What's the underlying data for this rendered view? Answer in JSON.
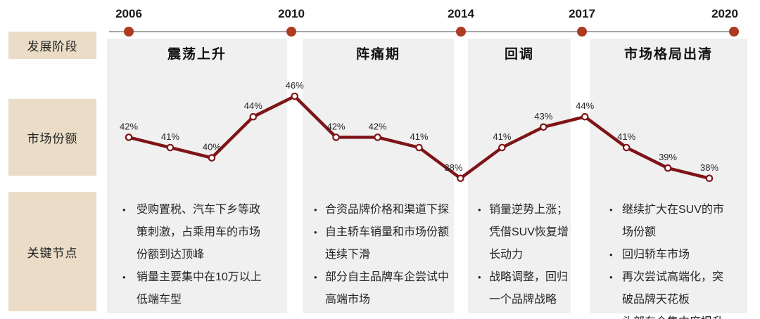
{
  "timeline": {
    "years": [
      "2006",
      "2010",
      "2014",
      "2017",
      "2020"
    ]
  },
  "row_labels": {
    "stage": "发展阶段",
    "share": "市场份额",
    "nodes": "关键节点"
  },
  "phases": [
    {
      "title": "震荡上升",
      "start_year": 2006,
      "end_year": 2010,
      "notes": [
        "受购置税、汽车下乡等政策刺激，占乘用车的市场份额到达顶峰",
        "销量主要集中在10万以上低端车型"
      ]
    },
    {
      "title": "阵痛期",
      "start_year": 2010,
      "end_year": 2014,
      "notes": [
        "合资品牌价格和渠道下探",
        "自主轿车销量和市场份额连续下滑",
        "部分自主品牌车企尝试中高端市场"
      ]
    },
    {
      "title": "回调",
      "start_year": 2014,
      "end_year": 2017,
      "notes": [
        "销量逆势上涨；凭借SUV恢复增长动力",
        "战略调整，回归一个品牌战略"
      ]
    },
    {
      "title": "市场格局出清",
      "start_year": 2017,
      "end_year": 2020,
      "notes": [
        "继续扩大在SUV的市场份额",
        "回归轿车市场",
        "再次尝试高端化，突破品牌天花板",
        "头部车企集中度提升"
      ]
    }
  ],
  "chart_data": {
    "type": "line",
    "series_name": "市场份额",
    "x": [
      2006,
      2007,
      2008,
      2009,
      2010,
      2011,
      2012,
      2013,
      2014,
      2015,
      2016,
      2017,
      2018,
      2019,
      2020
    ],
    "values": [
      42,
      41,
      40,
      44,
      46,
      42,
      42,
      41,
      38,
      41,
      43,
      44,
      41,
      39,
      38
    ],
    "point_labels": [
      "42%",
      "41%",
      "40%",
      "44%",
      "46%",
      "42%",
      "42%",
      "41%",
      "38%",
      "41%",
      "43%",
      "44%",
      "41%",
      "39%",
      "38%"
    ],
    "unit": "%",
    "x_axis_ticks_shown": [
      "2006",
      "2010",
      "2014",
      "2017",
      "2020"
    ],
    "gridlines": false,
    "legend": false,
    "marker": "open-circle"
  },
  "glyphs": {
    "bullet_char": "•"
  },
  "colors": {
    "line": "#7E1418",
    "timeline_dot": "#AC3B22",
    "timeline_line": "#A6A6A6",
    "label_box_bg": "#EADCC6",
    "column_bg": "#F1F0F0"
  }
}
